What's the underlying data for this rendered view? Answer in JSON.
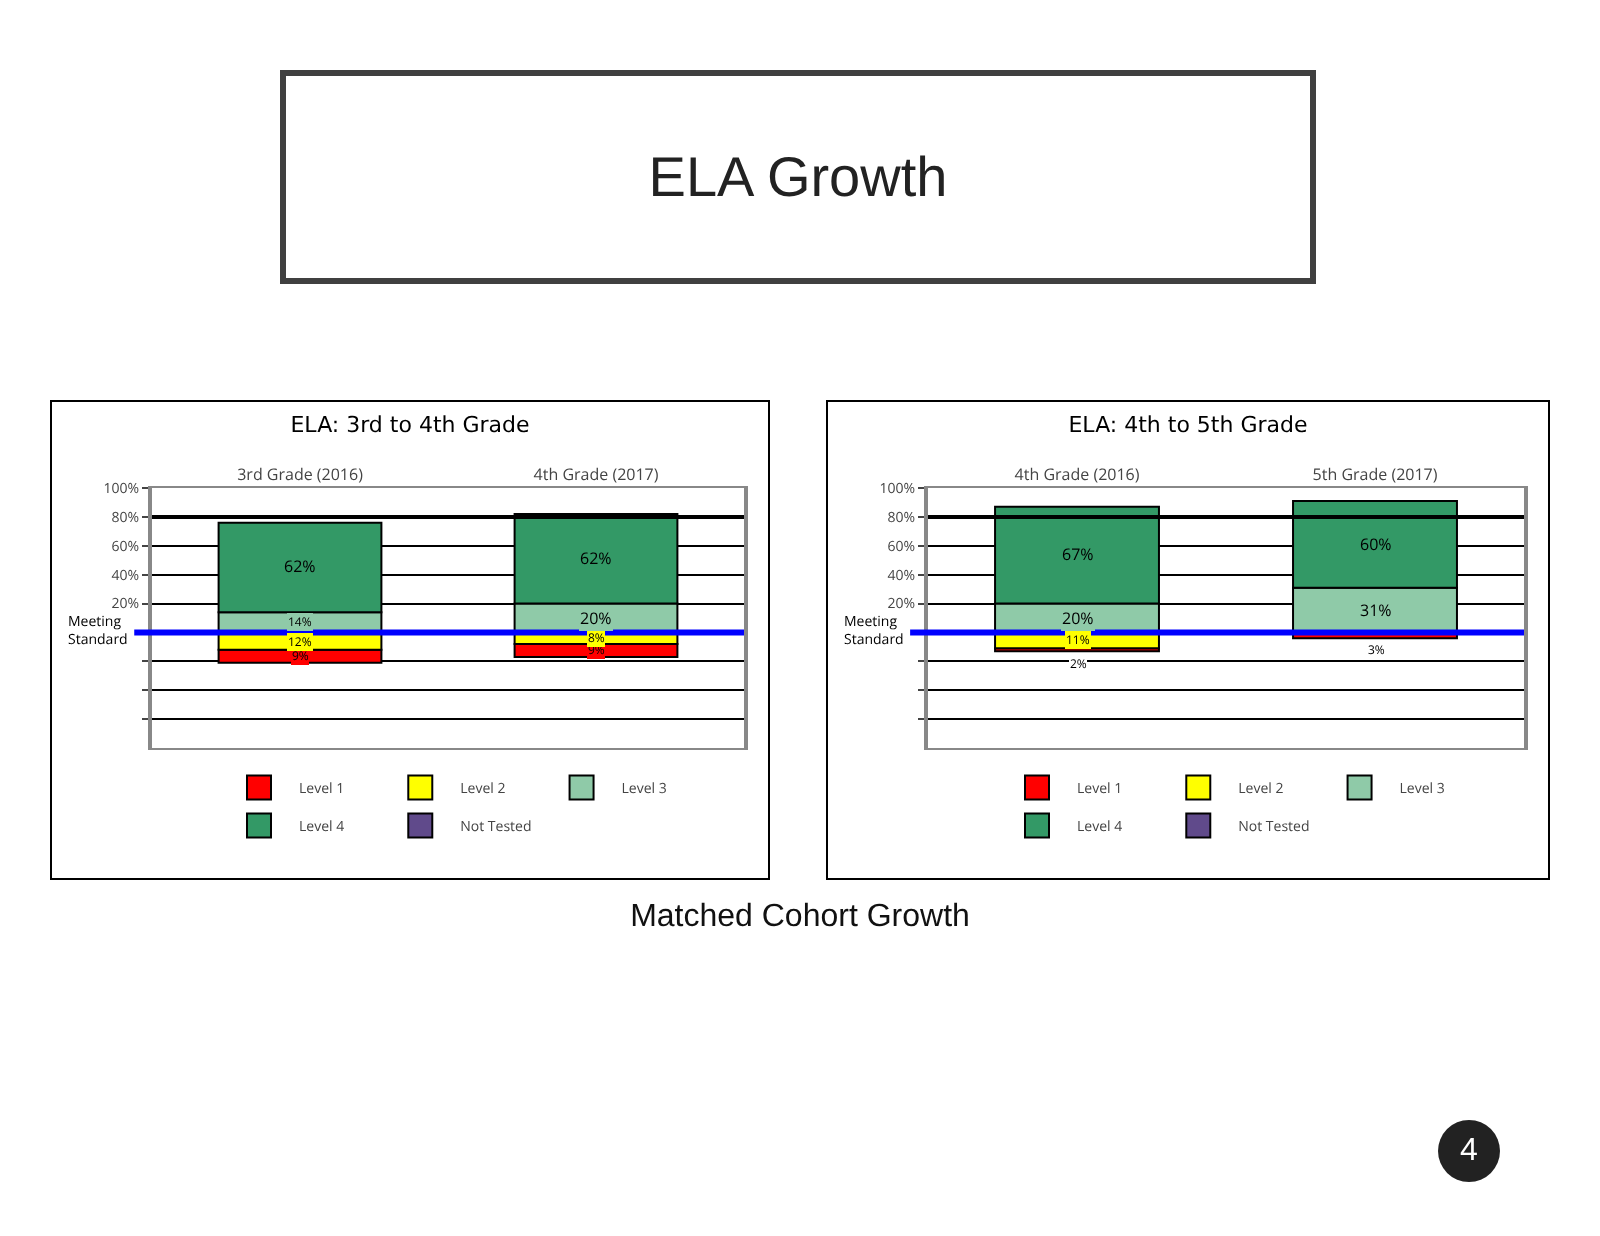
{
  "chart_data": [
    {
      "type": "bar",
      "title": "ELA: 3rd to 4th Grade",
      "categories": [
        "3rd Grade (2016)",
        "4th Grade (2017)"
      ],
      "series": [
        {
          "name": "Level 1",
          "color": "#ff0000",
          "values": [
            9,
            9
          ],
          "base": [
            -21,
            -17
          ],
          "value_labels": [
            "9%",
            "9%"
          ]
        },
        {
          "name": "Level 2",
          "color": "#ffff00",
          "values": [
            12,
            8
          ],
          "base": [
            -12,
            -8
          ],
          "value_labels": [
            "12%",
            "8%"
          ]
        },
        {
          "name": "Level 3",
          "color": "#8fcaa8",
          "values": [
            14,
            20
          ],
          "base": [
            0,
            0
          ],
          "value_labels": [
            "14%",
            "20%"
          ]
        },
        {
          "name": "Level 4",
          "color": "#339966",
          "values": [
            62,
            62
          ],
          "base": [
            14,
            20
          ],
          "value_labels": [
            "62%",
            "62%"
          ]
        },
        {
          "name": "Not Tested",
          "color": "#604a8b",
          "values": [
            null,
            null
          ]
        }
      ],
      "ylim": [
        -80,
        100
      ],
      "yticks": [
        {
          "value": 100,
          "label": "100%"
        },
        {
          "value": 80,
          "label": "80%"
        },
        {
          "value": 60,
          "label": "60%"
        },
        {
          "value": 40,
          "label": "40%"
        },
        {
          "value": 20,
          "label": "20%"
        },
        {
          "value": 0,
          "label": null
        },
        {
          "value": -20,
          "label": null
        },
        {
          "value": -40,
          "label": null
        },
        {
          "value": -60,
          "label": null
        }
      ],
      "grid": "y",
      "legend": "bottom",
      "ref_lines": [
        {
          "axis": "y",
          "value": 0,
          "label": "Meeting Standard",
          "color": "#0000ff"
        },
        {
          "axis": "y",
          "value": 80,
          "color": "#000000"
        }
      ],
      "annotations": [
        "ELA Growth",
        "Matched Cohort Growth",
        "4"
      ]
    },
    {
      "type": "bar",
      "title": "ELA: 4th to 5th Grade",
      "categories": [
        "4th Grade (2016)",
        "5th Grade (2017)"
      ],
      "series": [
        {
          "name": "Level 1",
          "color": "#ff0000",
          "values": [
            2,
            3
          ],
          "base": [
            -13,
            -4
          ],
          "value_labels": [
            "2%",
            "3%"
          ]
        },
        {
          "name": "Level 2",
          "color": "#ffff00",
          "values": [
            11,
            1
          ],
          "base": [
            -11,
            -1
          ],
          "value_labels": [
            "11%",
            null
          ]
        },
        {
          "name": "Level 3",
          "color": "#8fcaa8",
          "values": [
            20,
            31
          ],
          "base": [
            0,
            0
          ],
          "value_labels": [
            "20%",
            "31%"
          ]
        },
        {
          "name": "Level 4",
          "color": "#339966",
          "values": [
            67,
            60
          ],
          "base": [
            20,
            31
          ],
          "value_labels": [
            "67%",
            "60%"
          ]
        },
        {
          "name": "Not Tested",
          "color": "#604a8b",
          "values": [
            null,
            null
          ]
        }
      ],
      "ylim": [
        -80,
        100
      ],
      "yticks": [
        {
          "value": 100,
          "label": "100%"
        },
        {
          "value": 80,
          "label": "80%"
        },
        {
          "value": 60,
          "label": "60%"
        },
        {
          "value": 40,
          "label": "40%"
        },
        {
          "value": 20,
          "label": "20%"
        },
        {
          "value": 0,
          "label": null
        },
        {
          "value": -20,
          "label": null
        },
        {
          "value": -40,
          "label": null
        },
        {
          "value": -60,
          "label": null
        }
      ],
      "grid": "y",
      "legend": "bottom",
      "ref_lines": [
        {
          "axis": "y",
          "value": 0,
          "label": "Meeting Standard",
          "color": "#0000ff"
        },
        {
          "axis": "y",
          "value": 80,
          "color": "#000000"
        }
      ]
    }
  ]
}
